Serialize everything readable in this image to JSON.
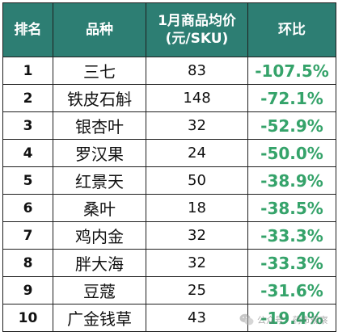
{
  "table": {
    "headers": {
      "rank": "排名",
      "name": "品种",
      "price_line1": "1月商品均价",
      "price_line2": "(元/SKU)",
      "change": "环比"
    },
    "rows": [
      {
        "rank": "1",
        "name": "三七",
        "price": "83",
        "change": "-107.5%"
      },
      {
        "rank": "2",
        "name": "铁皮石斛",
        "price": "148",
        "change": "-72.1%"
      },
      {
        "rank": "3",
        "name": "银杏叶",
        "price": "32",
        "change": "-52.9%"
      },
      {
        "rank": "4",
        "name": "罗汉果",
        "price": "24",
        "change": "-50.0%"
      },
      {
        "rank": "5",
        "name": "红景天",
        "price": "50",
        "change": "-38.9%"
      },
      {
        "rank": "6",
        "name": "桑叶",
        "price": "18",
        "change": "-38.5%"
      },
      {
        "rank": "7",
        "name": "鸡内金",
        "price": "32",
        "change": "-33.3%"
      },
      {
        "rank": "8",
        "name": "胖大海",
        "price": "32",
        "change": "-33.3%"
      },
      {
        "rank": "9",
        "name": "豆蔻",
        "price": "25",
        "change": "-31.6%"
      },
      {
        "rank": "10",
        "name": "广金钱草",
        "price": "43",
        "change": "-19.4%"
      }
    ]
  },
  "watermark": {
    "icon": "wechat-icon",
    "text": "公众号 · 药市观察"
  },
  "colors": {
    "header_bg": "#2d7e73",
    "header_text": "#ffffff",
    "change_text": "#35a36a",
    "border": "#1f1f1f"
  }
}
